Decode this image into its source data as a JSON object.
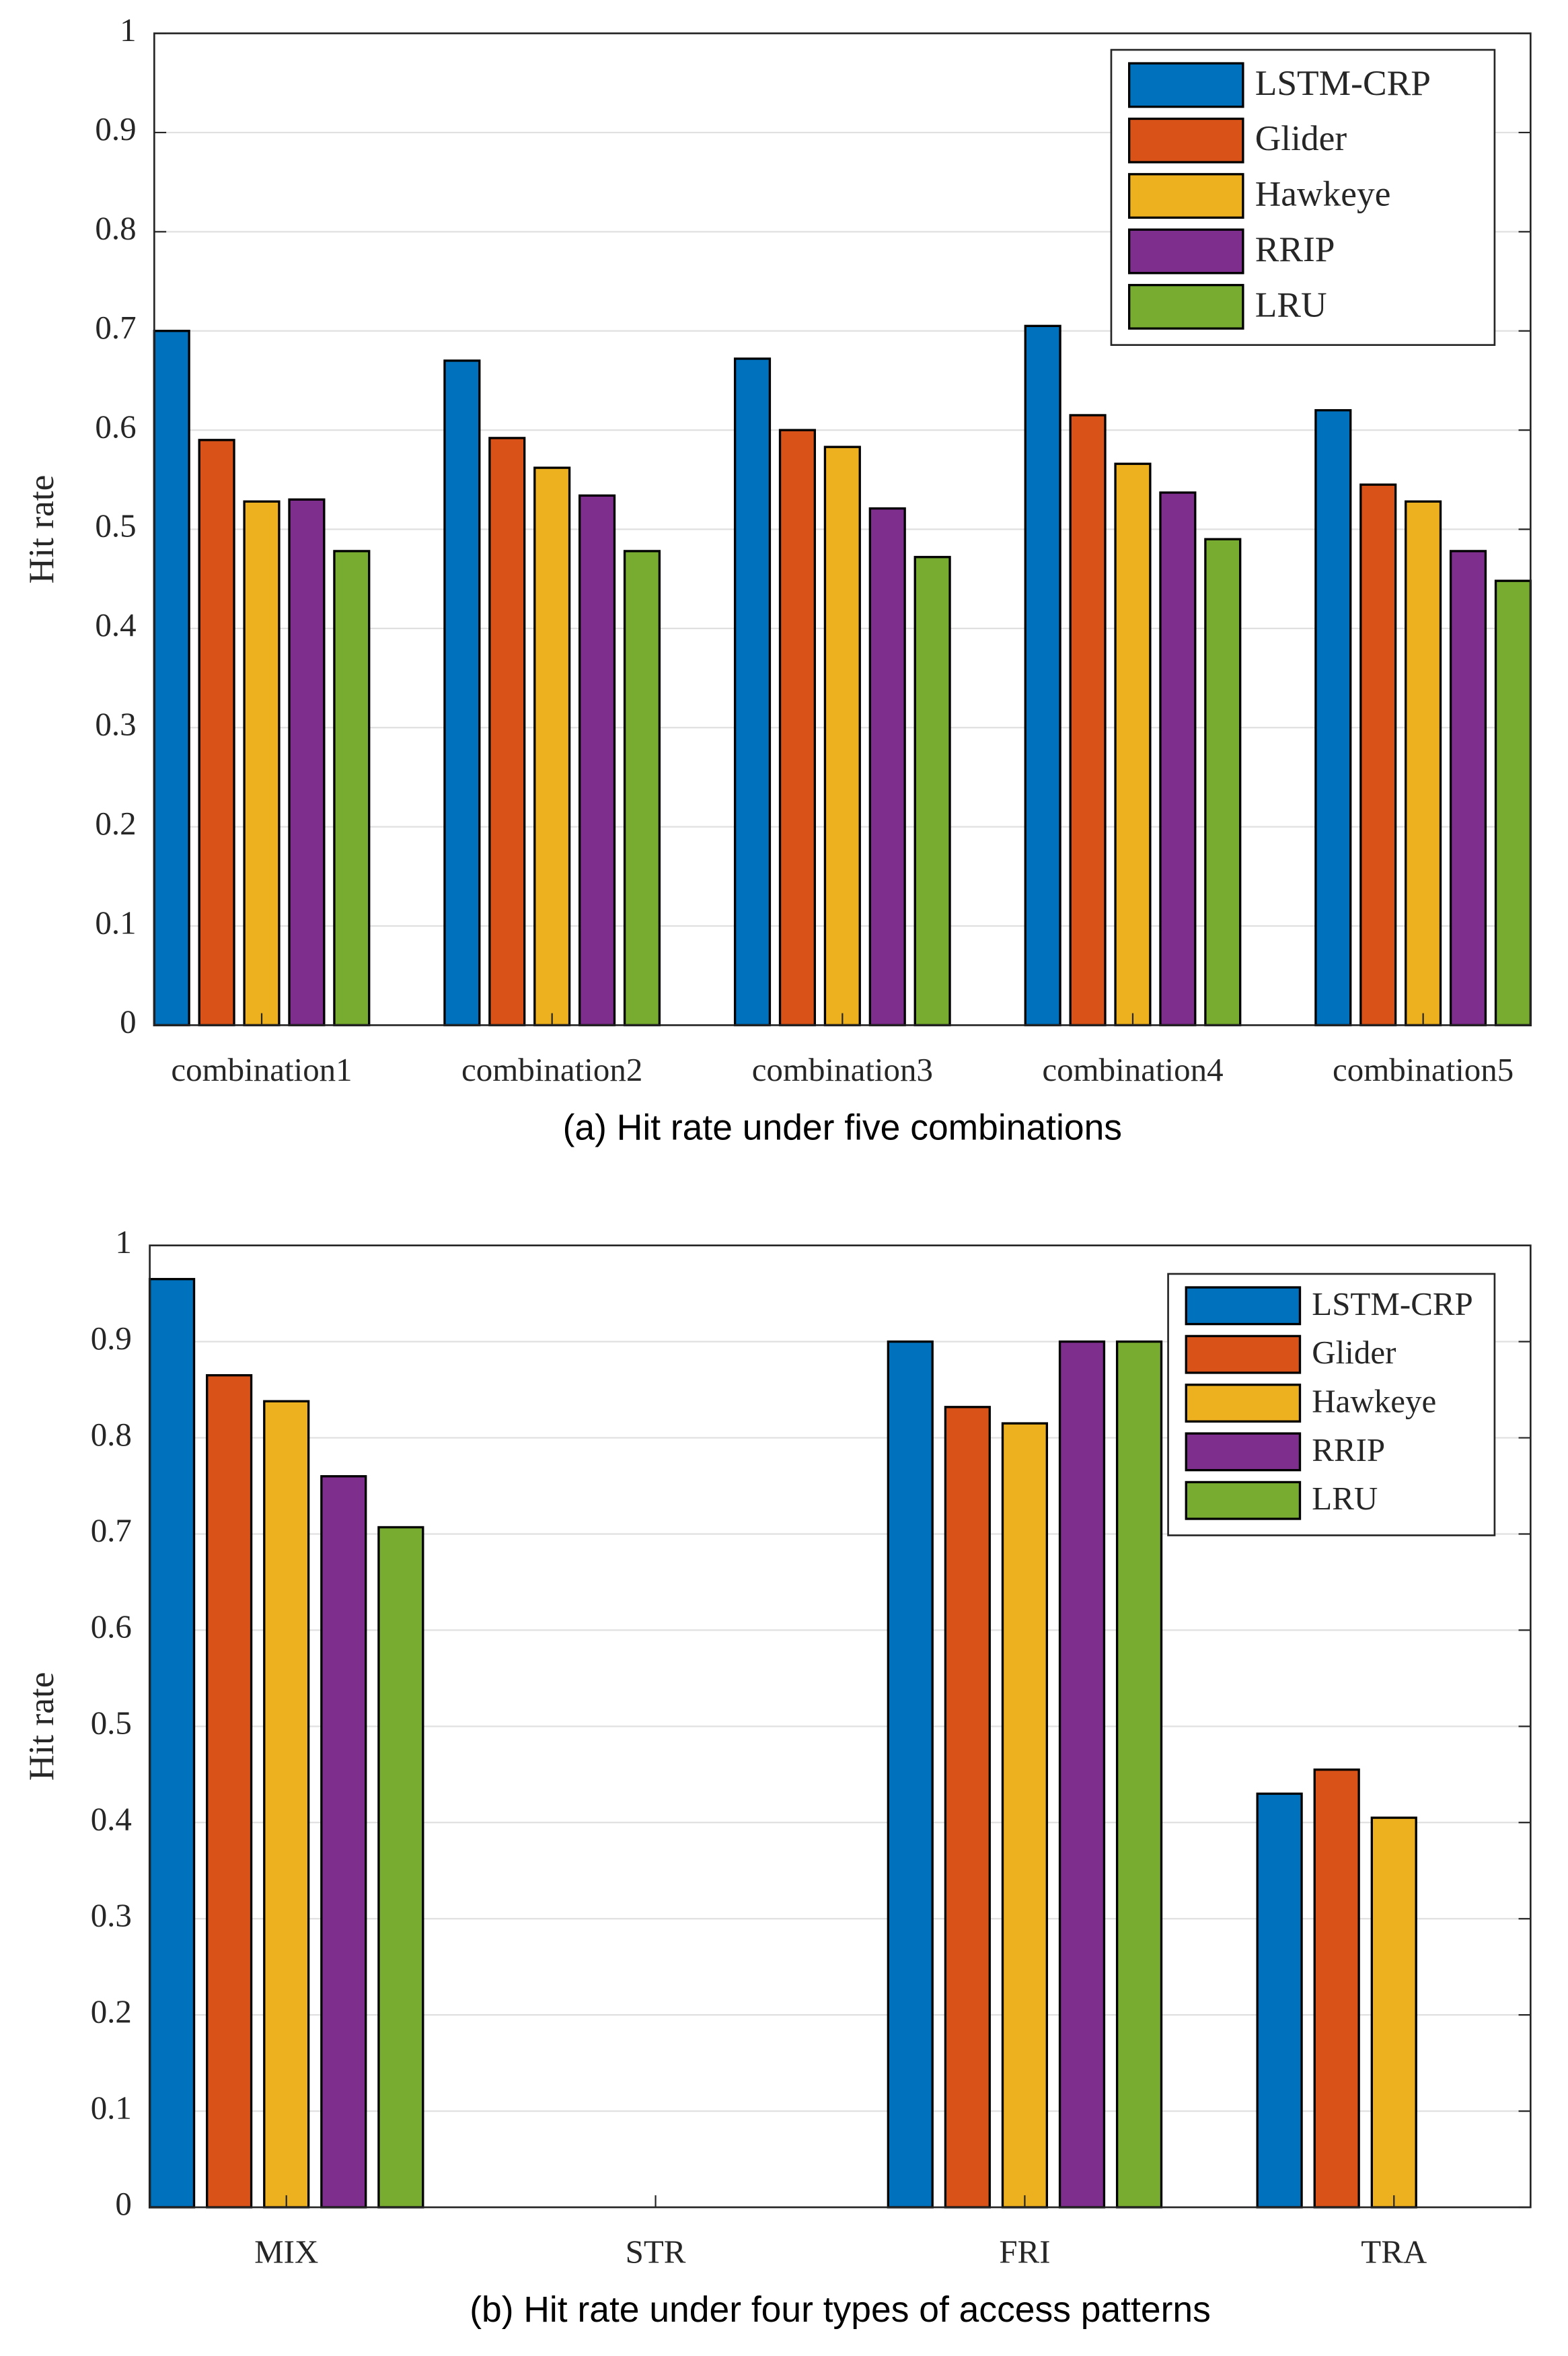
{
  "chart_data": [
    {
      "type": "bar",
      "xlabel": "(a) Hit rate under five combinations",
      "ylabel": "Hit rate",
      "categories": [
        "combination1",
        "combination2",
        "combination3",
        "combination4",
        "combination5"
      ],
      "series": [
        {
          "name": "LSTM-CRP",
          "color": "#0072BD",
          "values": [
            0.7,
            0.67,
            0.672,
            0.705,
            0.62
          ]
        },
        {
          "name": "Glider",
          "color": "#D95319",
          "values": [
            0.59,
            0.592,
            0.6,
            0.615,
            0.545
          ]
        },
        {
          "name": "Hawkeye",
          "color": "#EDB120",
          "values": [
            0.528,
            0.562,
            0.583,
            0.566,
            0.528
          ]
        },
        {
          "name": "RRIP",
          "color": "#7E2F8E",
          "values": [
            0.53,
            0.534,
            0.521,
            0.537,
            0.478
          ]
        },
        {
          "name": "LRU",
          "color": "#77AC30",
          "values": [
            0.478,
            0.478,
            0.472,
            0.49,
            0.448
          ]
        }
      ],
      "ylim": [
        0,
        1
      ],
      "yticks": [
        0,
        0.1,
        0.2,
        0.3,
        0.4,
        0.5,
        0.6,
        0.7,
        0.8,
        0.9,
        1
      ],
      "grid": true,
      "legend": "upper right"
    },
    {
      "type": "bar",
      "xlabel": "(b) Hit rate under four types of access patterns",
      "ylabel": "Hit rate",
      "categories": [
        "MIX",
        "STR",
        "FRI",
        "TRA"
      ],
      "series": [
        {
          "name": "LSTM-CRP",
          "color": "#0072BD",
          "values": [
            0.965,
            0,
            0.9,
            0.43
          ]
        },
        {
          "name": "Glider",
          "color": "#D95319",
          "values": [
            0.865,
            0,
            0.832,
            0.455
          ]
        },
        {
          "name": "Hawkeye",
          "color": "#EDB120",
          "values": [
            0.838,
            0,
            0.815,
            0.405
          ]
        },
        {
          "name": "RRIP",
          "color": "#7E2F8E",
          "values": [
            0.76,
            0,
            0.9,
            0
          ]
        },
        {
          "name": "LRU",
          "color": "#77AC30",
          "values": [
            0.707,
            0,
            0.9,
            0
          ]
        }
      ],
      "ylim": [
        0,
        1
      ],
      "yticks": [
        0,
        0.1,
        0.2,
        0.3,
        0.4,
        0.5,
        0.6,
        0.7,
        0.8,
        0.9,
        1
      ],
      "grid": true,
      "legend": "upper right"
    }
  ]
}
